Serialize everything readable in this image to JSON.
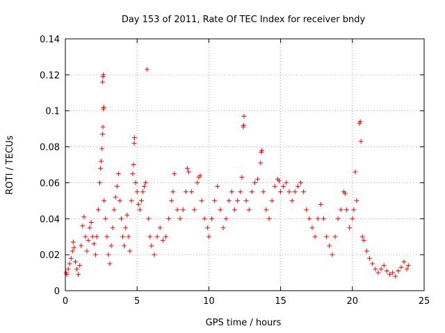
{
  "chart_data": {
    "type": "scatter",
    "title": "Day 153 of 2011, Rate Of TEC Index for receiver bndy",
    "xlabel": "GPS time / hours",
    "ylabel": "ROTI / TECUs",
    "xlim": [
      0,
      25
    ],
    "ylim": [
      0,
      0.14
    ],
    "xticks": [
      0,
      5,
      10,
      15,
      20,
      25
    ],
    "yticks": [
      0,
      0.02,
      0.04,
      0.06,
      0.08,
      0.1,
      0.12,
      0.14
    ],
    "xtick_labels": [
      "0",
      "5",
      "10",
      "15",
      "20",
      "25"
    ],
    "ytick_labels": [
      "0",
      "0.02",
      "0.04",
      "0.06",
      "0.08",
      "0.1",
      "0.12",
      "0.14"
    ],
    "grid": true,
    "marker": "+",
    "color": "#ff0000",
    "series": [
      {
        "points": [
          [
            0.05,
            0.01
          ],
          [
            0.1,
            0.009
          ],
          [
            0.2,
            0.012
          ],
          [
            0.3,
            0.015
          ],
          [
            0.4,
            0.018
          ],
          [
            0.5,
            0.022
          ],
          [
            0.55,
            0.027
          ],
          [
            0.6,
            0.024
          ],
          [
            0.7,
            0.016
          ],
          [
            0.8,
            0.012
          ],
          [
            0.9,
            0.009
          ],
          [
            1.0,
            0.014
          ],
          [
            1.1,
            0.025
          ],
          [
            1.2,
            0.036
          ],
          [
            1.3,
            0.041
          ],
          [
            1.4,
            0.03
          ],
          [
            1.5,
            0.022
          ],
          [
            1.6,
            0.028
          ],
          [
            1.7,
            0.035
          ],
          [
            1.8,
            0.038
          ],
          [
            1.9,
            0.03
          ],
          [
            2.0,
            0.026
          ],
          [
            2.1,
            0.02
          ],
          [
            2.2,
            0.03
          ],
          [
            2.3,
            0.045
          ],
          [
            2.4,
            0.06
          ],
          [
            2.45,
            0.068
          ],
          [
            2.5,
            0.072
          ],
          [
            2.55,
            0.079
          ],
          [
            2.6,
            0.087
          ],
          [
            2.62,
            0.091
          ],
          [
            2.65,
            0.101
          ],
          [
            2.68,
            0.102
          ],
          [
            2.6,
            0.116
          ],
          [
            2.62,
            0.119
          ],
          [
            2.65,
            0.12
          ],
          [
            2.7,
            0.05
          ],
          [
            2.8,
            0.04
          ],
          [
            2.9,
            0.03
          ],
          [
            3.0,
            0.02
          ],
          [
            3.1,
            0.015
          ],
          [
            3.2,
            0.025
          ],
          [
            3.3,
            0.035
          ],
          [
            3.4,
            0.045
          ],
          [
            3.5,
            0.052
          ],
          [
            3.6,
            0.058
          ],
          [
            3.7,
            0.065
          ],
          [
            3.8,
            0.05
          ],
          [
            3.9,
            0.04
          ],
          [
            4.0,
            0.03
          ],
          [
            4.1,
            0.025
          ],
          [
            4.2,
            0.035
          ],
          [
            4.3,
            0.042
          ],
          [
            4.4,
            0.03
          ],
          [
            4.5,
            0.022
          ],
          [
            4.6,
            0.05
          ],
          [
            4.7,
            0.065
          ],
          [
            4.75,
            0.07
          ],
          [
            4.8,
            0.082
          ],
          [
            4.82,
            0.085
          ],
          [
            4.9,
            0.06
          ],
          [
            5.0,
            0.055
          ],
          [
            5.1,
            0.048
          ],
          [
            5.2,
            0.045
          ],
          [
            5.3,
            0.05
          ],
          [
            5.4,
            0.055
          ],
          [
            5.5,
            0.058
          ],
          [
            5.6,
            0.06
          ],
          [
            5.7,
            0.123
          ],
          [
            5.8,
            0.04
          ],
          [
            5.9,
            0.03
          ],
          [
            6.0,
            0.025
          ],
          [
            6.2,
            0.02
          ],
          [
            6.4,
            0.03
          ],
          [
            6.6,
            0.035
          ],
          [
            6.8,
            0.028
          ],
          [
            7.0,
            0.03
          ],
          [
            7.2,
            0.04
          ],
          [
            7.4,
            0.05
          ],
          [
            7.5,
            0.055
          ],
          [
            7.6,
            0.065
          ],
          [
            7.8,
            0.045
          ],
          [
            8.0,
            0.04
          ],
          [
            8.2,
            0.045
          ],
          [
            8.4,
            0.055
          ],
          [
            8.5,
            0.068
          ],
          [
            8.6,
            0.066
          ],
          [
            8.8,
            0.055
          ],
          [
            9.0,
            0.045
          ],
          [
            9.2,
            0.06
          ],
          [
            9.3,
            0.063
          ],
          [
            9.4,
            0.064
          ],
          [
            9.5,
            0.05
          ],
          [
            9.7,
            0.04
          ],
          [
            9.9,
            0.035
          ],
          [
            10.0,
            0.03
          ],
          [
            10.2,
            0.04
          ],
          [
            10.4,
            0.05
          ],
          [
            10.6,
            0.058
          ],
          [
            10.8,
            0.045
          ],
          [
            11.0,
            0.035
          ],
          [
            11.2,
            0.04
          ],
          [
            11.4,
            0.05
          ],
          [
            11.6,
            0.055
          ],
          [
            11.8,
            0.045
          ],
          [
            12.0,
            0.05
          ],
          [
            12.2,
            0.055
          ],
          [
            12.3,
            0.063
          ],
          [
            12.4,
            0.091
          ],
          [
            12.42,
            0.092
          ],
          [
            12.45,
            0.097
          ],
          [
            12.6,
            0.05
          ],
          [
            12.8,
            0.045
          ],
          [
            13.0,
            0.055
          ],
          [
            13.2,
            0.06
          ],
          [
            13.4,
            0.062
          ],
          [
            13.6,
            0.071
          ],
          [
            13.65,
            0.077
          ],
          [
            13.7,
            0.078
          ],
          [
            13.8,
            0.055
          ],
          [
            14.0,
            0.045
          ],
          [
            14.2,
            0.04
          ],
          [
            14.4,
            0.05
          ],
          [
            14.6,
            0.058
          ],
          [
            14.8,
            0.062
          ],
          [
            14.9,
            0.061
          ],
          [
            15.0,
            0.055
          ],
          [
            15.2,
            0.058
          ],
          [
            15.4,
            0.06
          ],
          [
            15.6,
            0.055
          ],
          [
            15.8,
            0.05
          ],
          [
            16.0,
            0.055
          ],
          [
            16.2,
            0.058
          ],
          [
            16.4,
            0.06
          ],
          [
            16.6,
            0.055
          ],
          [
            16.8,
            0.045
          ],
          [
            17.0,
            0.04
          ],
          [
            17.2,
            0.035
          ],
          [
            17.4,
            0.03
          ],
          [
            17.6,
            0.04
          ],
          [
            17.8,
            0.048
          ],
          [
            18.0,
            0.04
          ],
          [
            18.2,
            0.03
          ],
          [
            18.4,
            0.025
          ],
          [
            18.6,
            0.02
          ],
          [
            18.8,
            0.03
          ],
          [
            19.0,
            0.04
          ],
          [
            19.2,
            0.045
          ],
          [
            19.4,
            0.055
          ],
          [
            19.5,
            0.054
          ],
          [
            19.6,
            0.045
          ],
          [
            19.8,
            0.035
          ],
          [
            20.0,
            0.04
          ],
          [
            20.1,
            0.045
          ],
          [
            20.2,
            0.066
          ],
          [
            20.3,
            0.05
          ],
          [
            20.5,
            0.093
          ],
          [
            20.55,
            0.094
          ],
          [
            20.6,
            0.083
          ],
          [
            20.7,
            0.03
          ],
          [
            20.8,
            0.028
          ],
          [
            21.0,
            0.022
          ],
          [
            21.2,
            0.018
          ],
          [
            21.4,
            0.015
          ],
          [
            21.6,
            0.012
          ],
          [
            21.8,
            0.01
          ],
          [
            22.0,
            0.012
          ],
          [
            22.2,
            0.014
          ],
          [
            22.4,
            0.011
          ],
          [
            22.6,
            0.009
          ],
          [
            22.8,
            0.01
          ],
          [
            23.0,
            0.008
          ],
          [
            23.2,
            0.011
          ],
          [
            23.4,
            0.013
          ],
          [
            23.6,
            0.016
          ],
          [
            23.8,
            0.012
          ],
          [
            23.9,
            0.014
          ]
        ]
      }
    ]
  }
}
